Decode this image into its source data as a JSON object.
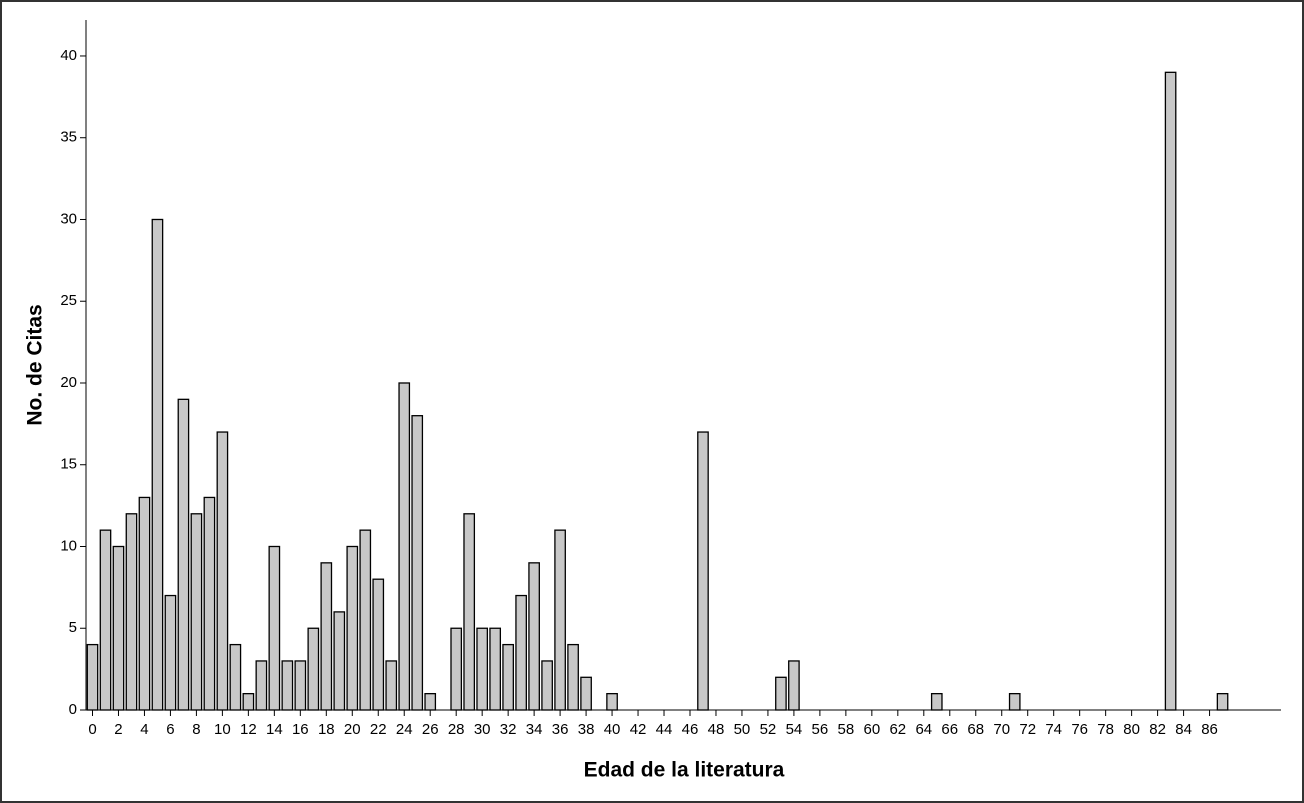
{
  "chart_data": {
    "type": "bar",
    "x_label": "Edad de la literatura",
    "y_label": "No. de Citas",
    "x": [
      0,
      1,
      2,
      3,
      4,
      5,
      6,
      7,
      8,
      9,
      10,
      11,
      12,
      13,
      14,
      15,
      16,
      17,
      18,
      19,
      20,
      21,
      22,
      23,
      24,
      25,
      26,
      28,
      29,
      30,
      31,
      32,
      33,
      34,
      35,
      36,
      37,
      38,
      40,
      47,
      53,
      54,
      65,
      71,
      83,
      87
    ],
    "values": [
      4,
      11,
      10,
      12,
      13,
      30,
      7,
      19,
      12,
      13,
      17,
      4,
      1,
      3,
      10,
      3,
      3,
      5,
      9,
      6,
      10,
      11,
      8,
      3,
      20,
      18,
      1,
      5,
      12,
      5,
      5,
      4,
      7,
      9,
      3,
      11,
      4,
      2,
      1,
      17,
      2,
      3,
      1,
      1,
      39,
      1
    ],
    "color": "#c8c8c8",
    "xlim": [
      -0.5,
      91.5
    ],
    "xticks": [
      0,
      2,
      4,
      6,
      8,
      10,
      12,
      14,
      16,
      18,
      20,
      22,
      24,
      26,
      28,
      30,
      32,
      34,
      36,
      38,
      40,
      42,
      44,
      46,
      48,
      50,
      52,
      54,
      56,
      58,
      60,
      62,
      64,
      66,
      68,
      70,
      72,
      74,
      76,
      78,
      80,
      82,
      84,
      86
    ],
    "ylim": [
      0,
      42.2
    ],
    "yticks": [
      0,
      5,
      10,
      15,
      20,
      25,
      30,
      35,
      40
    ],
    "grid": false
  }
}
